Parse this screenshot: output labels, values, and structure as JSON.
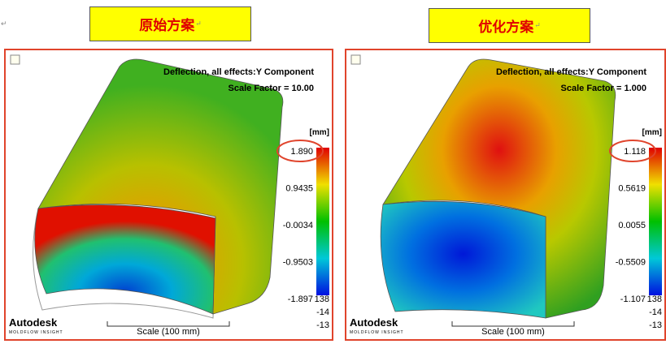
{
  "margin_mark": "↵",
  "panels": [
    {
      "title": "原始方案",
      "mark": "↵",
      "heading": "Deflection, all effects:Y Component",
      "scale_factor": "Scale Factor = 10.00",
      "unit": "[mm]",
      "legend": [
        "1.890",
        "0.9435",
        "-0.0034",
        "-0.9503",
        "-1.897"
      ],
      "extra": [
        "138",
        "-14",
        "-13"
      ],
      "logo": "Autodesk",
      "logo_sub": "MOLDFLOW INSIGHT",
      "scale_label": "Scale (100 mm)"
    },
    {
      "title": "优化方案",
      "mark": "↵",
      "heading": "Deflection, all effects:Y Component",
      "scale_factor": "Scale Factor = 1.000",
      "unit": "[mm]",
      "legend": [
        "1.118",
        "0.5619",
        "0.0055",
        "-0.5509",
        "-1.107"
      ],
      "extra": [
        "138",
        "-14",
        "-13"
      ],
      "logo": "Autodesk",
      "logo_sub": "MOLDFLOW INSIGHT",
      "scale_label": "Scale (100 mm)"
    }
  ]
}
